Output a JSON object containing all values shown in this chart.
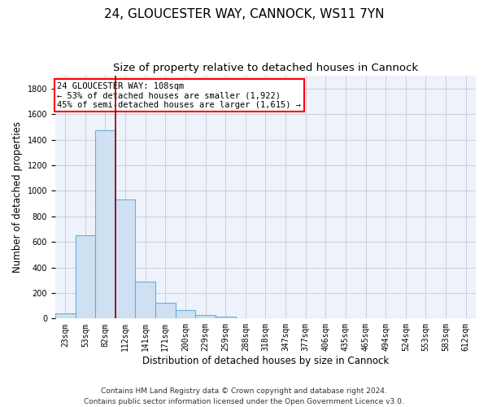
{
  "title1": "24, GLOUCESTER WAY, CANNOCK, WS11 7YN",
  "title2": "Size of property relative to detached houses in Cannock",
  "xlabel": "Distribution of detached houses by size in Cannock",
  "ylabel": "Number of detached properties",
  "bar_color": "#cfe0f3",
  "bar_edge_color": "#6aaed6",
  "vline_color": "#8b0000",
  "vline_x_idx": 2.5,
  "categories": [
    "23sqm",
    "53sqm",
    "82sqm",
    "112sqm",
    "141sqm",
    "171sqm",
    "200sqm",
    "229sqm",
    "259sqm",
    "288sqm",
    "318sqm",
    "347sqm",
    "377sqm",
    "406sqm",
    "435sqm",
    "465sqm",
    "494sqm",
    "524sqm",
    "553sqm",
    "583sqm",
    "612sqm"
  ],
  "values": [
    38,
    650,
    1475,
    935,
    290,
    125,
    63,
    25,
    12,
    0,
    0,
    0,
    0,
    0,
    0,
    0,
    0,
    0,
    0,
    0,
    0
  ],
  "ylim": [
    0,
    1900
  ],
  "yticks": [
    0,
    200,
    400,
    600,
    800,
    1000,
    1200,
    1400,
    1600,
    1800
  ],
  "annotation_line1": "24 GLOUCESTER WAY: 108sqm",
  "annotation_line2": "← 53% of detached houses are smaller (1,922)",
  "annotation_line3": "45% of semi-detached houses are larger (1,615) →",
  "footnote": "Contains HM Land Registry data © Crown copyright and database right 2024.\nContains public sector information licensed under the Open Government Licence v3.0.",
  "background_color": "#eef2fb",
  "grid_color": "#c8c8d8",
  "title1_fontsize": 11,
  "title2_fontsize": 9.5,
  "xlabel_fontsize": 8.5,
  "ylabel_fontsize": 8.5,
  "tick_fontsize": 7,
  "annotation_fontsize": 7.5,
  "footnote_fontsize": 6.5
}
